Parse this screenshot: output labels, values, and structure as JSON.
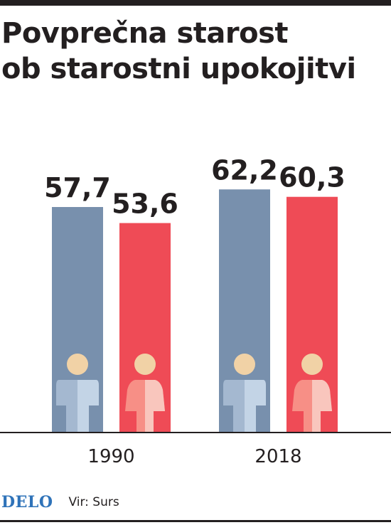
{
  "header": {
    "title_line1": "Povprečna starost",
    "title_line2": "ob starostni upokojitvi"
  },
  "footer": {
    "logo": "DELO",
    "source": "Vir: Surs"
  },
  "colors": {
    "men": "#7890ad",
    "women": "#ef4b56",
    "icon_head": "#f1d2a6",
    "icon_men_light": "#c3d4e6",
    "icon_men_dark": "#a4b8d0",
    "icon_women_light": "#f9c6bd",
    "icon_women_dark": "#f78f86",
    "text": "#231f20"
  },
  "chart_data": {
    "type": "bar",
    "title": "Povprečna starost ob starostni upokojitvi",
    "categories": [
      "1990",
      "2018"
    ],
    "series": [
      {
        "key": "men",
        "icon": "man-icon",
        "values": [
          57.7,
          62.2
        ],
        "labels": [
          "57,7",
          "62,2"
        ]
      },
      {
        "key": "women",
        "icon": "woman-icon",
        "values": [
          53.6,
          60.3
        ],
        "labels": [
          "53,6",
          "60,3"
        ]
      }
    ],
    "xlabel": "",
    "ylabel": "",
    "grid": false,
    "legend": "none"
  }
}
